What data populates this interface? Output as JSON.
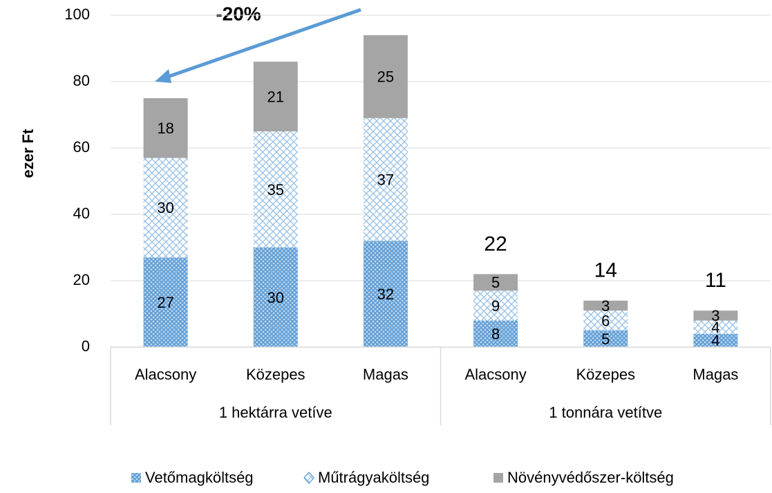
{
  "chart_data": {
    "type": "stacked_bar",
    "ylabel": "ezer Ft",
    "categories": [
      "Alacsony",
      "Közepes",
      "Magas",
      "Alacsony",
      "Közepes",
      "Magas"
    ],
    "groups": [
      "1 hektárra vetíve",
      "1 tonnára vetítve"
    ],
    "series": [
      {
        "name": "Vetőmagköltség",
        "color": "#5b9bd5",
        "values": [
          27,
          30,
          32,
          8,
          5,
          4
        ]
      },
      {
        "name": "Műtrágyaköltség",
        "color": "#5b9bd5",
        "values": [
          30,
          35,
          37,
          9,
          6,
          4
        ]
      },
      {
        "name": "Növényvédőszer-költség",
        "color": "#a5a5a5",
        "values": [
          18,
          21,
          25,
          5,
          3,
          3
        ]
      }
    ],
    "totals": [
      null,
      null,
      null,
      22,
      14,
      11
    ],
    "annotation": "-20%",
    "ylim": [
      0,
      100
    ],
    "yticks": [
      0,
      20,
      40,
      60,
      80,
      100
    ],
    "grid": true,
    "legend": "bottom"
  }
}
